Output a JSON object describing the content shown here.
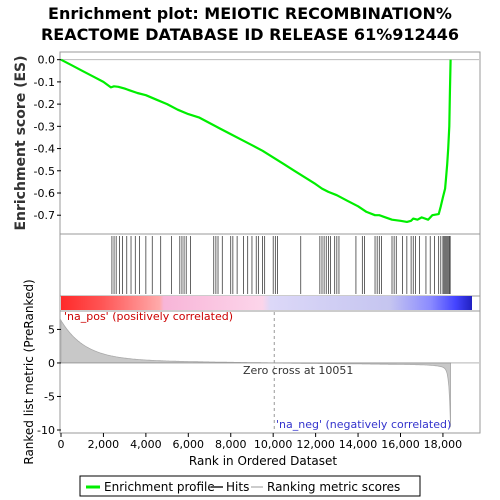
{
  "chart_data": {
    "type": "line",
    "title_line1": "Enrichment plot: MEIOTIC RECOMBINATION%",
    "title_line2": "REACTOME DATABASE ID RELEASE 61%912446",
    "es_ylabel": "Enrichment score (ES)",
    "metric_ylabel": "Ranked list metric (PreRanked)",
    "xlabel": "Rank in Ordered Dataset",
    "xlim": [
      0,
      19700
    ],
    "x_ticks": [
      0,
      2000,
      4000,
      6000,
      8000,
      10000,
      12000,
      14000,
      16000,
      18000
    ],
    "x_tick_labels": [
      "0",
      "2,000",
      "4,000",
      "6,000",
      "8,000",
      "10,000",
      "12,000",
      "14,000",
      "16,000",
      "18,000"
    ],
    "es_ylim": [
      -0.78,
      0.03
    ],
    "es_ticks": [
      0.0,
      -0.1,
      -0.2,
      -0.3,
      -0.4,
      -0.5,
      -0.6,
      -0.7
    ],
    "es_tick_labels": [
      "0.0",
      "-0.1",
      "-0.2",
      "-0.3",
      "-0.4",
      "-0.5",
      "-0.6",
      "-0.7"
    ],
    "metric_ylim": [
      -10.3,
      7.6
    ],
    "metric_ticks": [
      5,
      0,
      -5,
      -10
    ],
    "metric_tick_labels": [
      "5",
      "0",
      "-5",
      "-10"
    ],
    "series": [
      {
        "name": "Enrichment profile",
        "color": "#00ee00",
        "x": [
          0,
          500,
          1000,
          1500,
          2000,
          2350,
          2500,
          2700,
          3000,
          3300,
          3600,
          4000,
          4500,
          5000,
          5500,
          6000,
          6500,
          7000,
          7500,
          8000,
          8500,
          9000,
          9500,
          10000,
          10500,
          11000,
          11500,
          12000,
          12300,
          12600,
          13000,
          13500,
          14000,
          14400,
          14800,
          15000,
          15300,
          15600,
          16000,
          16300,
          16500,
          16600,
          16800,
          17000,
          17300,
          17500,
          17800,
          17900,
          18000,
          18100,
          18150,
          18200,
          18250,
          18300,
          18330,
          18360
        ],
        "y": [
          0.0,
          -0.025,
          -0.05,
          -0.075,
          -0.1,
          -0.125,
          -0.12,
          -0.122,
          -0.13,
          -0.14,
          -0.15,
          -0.16,
          -0.18,
          -0.2,
          -0.225,
          -0.245,
          -0.26,
          -0.285,
          -0.31,
          -0.335,
          -0.36,
          -0.385,
          -0.41,
          -0.44,
          -0.47,
          -0.5,
          -0.53,
          -0.56,
          -0.58,
          -0.595,
          -0.61,
          -0.635,
          -0.66,
          -0.685,
          -0.7,
          -0.7,
          -0.71,
          -0.72,
          -0.725,
          -0.73,
          -0.725,
          -0.715,
          -0.72,
          -0.71,
          -0.72,
          -0.7,
          -0.695,
          -0.66,
          -0.62,
          -0.58,
          -0.53,
          -0.47,
          -0.4,
          -0.3,
          -0.15,
          0.0
        ]
      }
    ],
    "hits": [
      2400,
      2500,
      2600,
      2750,
      2900,
      3100,
      3300,
      3500,
      3700,
      4000,
      4300,
      4700,
      5200,
      5600,
      5700,
      5800,
      5900,
      6100,
      7200,
      7300,
      7400,
      7600,
      8000,
      8100,
      8300,
      8600,
      8800,
      9000,
      9200,
      9300,
      9500,
      9600,
      10000,
      10100,
      10200,
      11300,
      12200,
      12300,
      12400,
      12500,
      12600,
      12700,
      12900,
      13000,
      13100,
      13900,
      14200,
      14300,
      14800,
      14900,
      15000,
      15100,
      15600,
      15700,
      15800,
      16100,
      16300,
      16500,
      16600,
      16700,
      16900,
      17200,
      17400,
      17600,
      17800,
      17900,
      18000,
      18050,
      18100,
      18150,
      18200,
      18250,
      18300,
      18340
    ],
    "zero_cross_rank": 10051,
    "annotations": {
      "zero_cross": "Zero cross at 10051",
      "na_pos": "'na_pos' (positively correlated)",
      "na_neg": "'na_neg' (negatively correlated)"
    },
    "legend": {
      "placement": "bottom",
      "entries": [
        {
          "name": "Enrichment profile",
          "color": "#00ee00"
        },
        {
          "name": "Hits",
          "color": "#555555"
        },
        {
          "name": "Ranking metric scores",
          "color": "#cccccc"
        }
      ]
    },
    "grid": false
  }
}
